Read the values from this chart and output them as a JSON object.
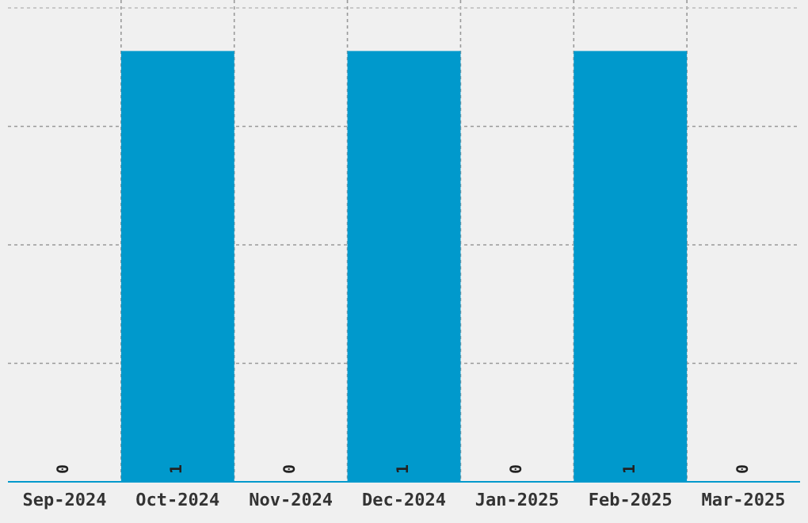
{
  "chart_data": {
    "type": "bar",
    "categories": [
      "Sep-2024",
      "Oct-2024",
      "Nov-2024",
      "Dec-2024",
      "Jan-2025",
      "Feb-2025",
      "Mar-2025"
    ],
    "values": [
      0,
      1,
      0,
      1,
      0,
      1,
      0
    ],
    "color": "#0099cc",
    "data_labels": true,
    "grid": true,
    "tick_labels": "x",
    "ylim": [
      0,
      1.1
    ],
    "yticks": [
      {
        "value": 0.275,
        "label": null
      },
      {
        "value": 0.55,
        "label": null
      },
      {
        "value": 0.825,
        "label": null
      }
    ]
  }
}
